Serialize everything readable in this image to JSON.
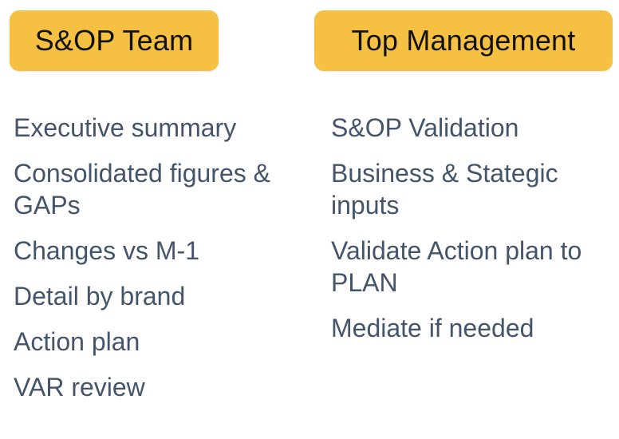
{
  "left_column": {
    "header": "S&OP Team",
    "items": [
      "Executive summary",
      "Consolidated figures & GAPs",
      "Changes vs M-1",
      "Detail by brand",
      "Action plan",
      "VAR review"
    ]
  },
  "right_column": {
    "header": "Top Management",
    "items": [
      "S&OP Validation",
      "Business & Stategic inputs",
      "Validate Action plan to PLAN",
      "Mediate if needed"
    ]
  },
  "colors": {
    "header_background": "#F6C143",
    "header_text": "#111111",
    "item_text": "#44546A"
  }
}
